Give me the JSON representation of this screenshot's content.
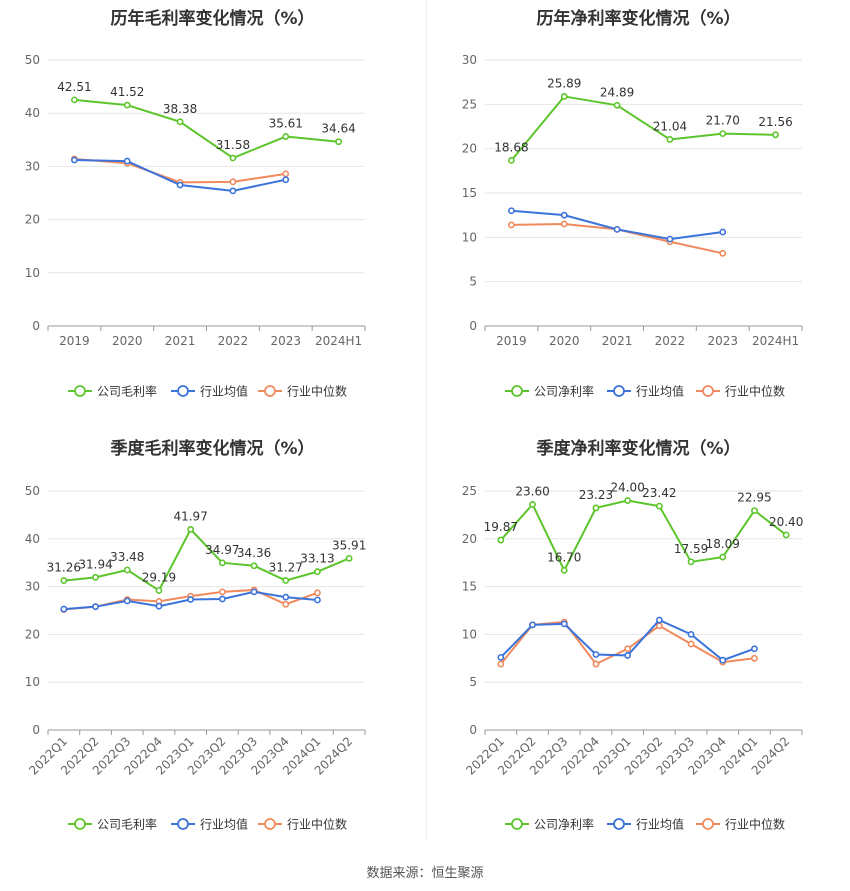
{
  "footer": {
    "source": "数据来源：恒生聚源"
  },
  "colors": {
    "company": "#5cc52b",
    "industry_avg": "#3b73db",
    "industry_median": "#f08a5d"
  },
  "legend_icon": "circle-line-icon",
  "chart_data": [
    {
      "id": "annual-gross",
      "type": "line",
      "title": "历年毛利率变化情况（%）",
      "categories": [
        "2019",
        "2020",
        "2021",
        "2022",
        "2023",
        "2024H1"
      ],
      "ylim": [
        0,
        50
      ],
      "yticks": [
        0,
        10,
        20,
        30,
        40,
        50
      ],
      "grid": true,
      "rotate_x": false,
      "legend_position": "bottom",
      "series": [
        {
          "name": "公司毛利率",
          "color": "#5cc52b",
          "values": [
            42.51,
            41.52,
            38.38,
            31.58,
            35.61,
            34.64
          ],
          "labels": [
            "42.51",
            "41.52",
            "38.38",
            "31.58",
            "35.61",
            "34.64"
          ]
        },
        {
          "name": "行业均值",
          "color": "#3b73db",
          "values": [
            31.2,
            31.0,
            26.5,
            25.4,
            27.5,
            null
          ],
          "labels": []
        },
        {
          "name": "行业中位数",
          "color": "#f08a5d",
          "values": [
            31.4,
            30.6,
            27.0,
            27.1,
            28.6,
            null
          ],
          "labels": []
        }
      ]
    },
    {
      "id": "annual-net",
      "type": "line",
      "title": "历年净利率变化情况（%）",
      "categories": [
        "2019",
        "2020",
        "2021",
        "2022",
        "2023",
        "2024H1"
      ],
      "ylim": [
        0,
        30
      ],
      "yticks": [
        0,
        5,
        10,
        15,
        20,
        25,
        30
      ],
      "grid": true,
      "rotate_x": false,
      "legend_position": "bottom",
      "series": [
        {
          "name": "公司净利率",
          "color": "#5cc52b",
          "values": [
            18.68,
            25.89,
            24.89,
            21.04,
            21.7,
            21.56
          ],
          "labels": [
            "18.68",
            "25.89",
            "24.89",
            "21.04",
            "21.70",
            "21.56"
          ]
        },
        {
          "name": "行业均值",
          "color": "#3b73db",
          "values": [
            13.0,
            12.5,
            10.9,
            9.8,
            10.6,
            null
          ],
          "labels": []
        },
        {
          "name": "行业中位数",
          "color": "#f08a5d",
          "values": [
            11.4,
            11.5,
            10.9,
            9.5,
            8.2,
            null
          ],
          "labels": []
        }
      ]
    },
    {
      "id": "quarterly-gross",
      "type": "line",
      "title": "季度毛利率变化情况（%）",
      "categories": [
        "2022Q1",
        "2022Q2",
        "2022Q3",
        "2022Q4",
        "2023Q1",
        "2023Q2",
        "2023Q3",
        "2023Q4",
        "2024Q1",
        "2024Q2"
      ],
      "ylim": [
        0,
        50
      ],
      "yticks": [
        0,
        10,
        20,
        30,
        40,
        50
      ],
      "grid": true,
      "rotate_x": true,
      "legend_position": "bottom",
      "series": [
        {
          "name": "公司毛利率",
          "color": "#5cc52b",
          "values": [
            31.26,
            31.94,
            33.48,
            29.19,
            41.97,
            34.97,
            34.36,
            31.27,
            33.13,
            35.91
          ],
          "labels": [
            "31.26",
            "31.94",
            "33.48",
            "29.19",
            "41.97",
            "34.97",
            "34.36",
            "31.27",
            "33.13",
            "35.91"
          ]
        },
        {
          "name": "行业均值",
          "color": "#3b73db",
          "values": [
            25.3,
            25.8,
            27.0,
            25.9,
            27.3,
            27.4,
            28.9,
            27.8,
            27.2,
            null
          ],
          "labels": []
        },
        {
          "name": "行业中位数",
          "color": "#f08a5d",
          "values": [
            25.2,
            25.8,
            27.3,
            26.9,
            28.0,
            28.9,
            29.3,
            26.3,
            28.7,
            null
          ],
          "labels": []
        }
      ]
    },
    {
      "id": "quarterly-net",
      "type": "line",
      "title": "季度净利率变化情况（%）",
      "categories": [
        "2022Q1",
        "2022Q2",
        "2022Q3",
        "2022Q4",
        "2023Q1",
        "2023Q2",
        "2023Q3",
        "2023Q4",
        "2024Q1",
        "2024Q2"
      ],
      "ylim": [
        0,
        25
      ],
      "yticks": [
        0,
        5,
        10,
        15,
        20,
        25
      ],
      "grid": true,
      "rotate_x": true,
      "legend_position": "bottom",
      "series": [
        {
          "name": "公司净利率",
          "color": "#5cc52b",
          "values": [
            19.87,
            23.6,
            16.7,
            23.23,
            24.0,
            23.42,
            17.59,
            18.09,
            22.95,
            20.4
          ],
          "labels": [
            "19.87",
            "23.60",
            "16.70",
            "23.23",
            "24.00",
            "23.42",
            "17.59",
            "18.09",
            "22.95",
            "20.40"
          ]
        },
        {
          "name": "行业均值",
          "color": "#3b73db",
          "values": [
            7.6,
            11.0,
            11.1,
            7.9,
            7.8,
            11.5,
            10.0,
            7.3,
            8.5,
            null
          ],
          "labels": []
        },
        {
          "name": "行业中位数",
          "color": "#f08a5d",
          "values": [
            6.9,
            11.0,
            11.3,
            6.9,
            8.5,
            10.9,
            9.0,
            7.1,
            7.5,
            null
          ],
          "labels": []
        }
      ]
    }
  ]
}
